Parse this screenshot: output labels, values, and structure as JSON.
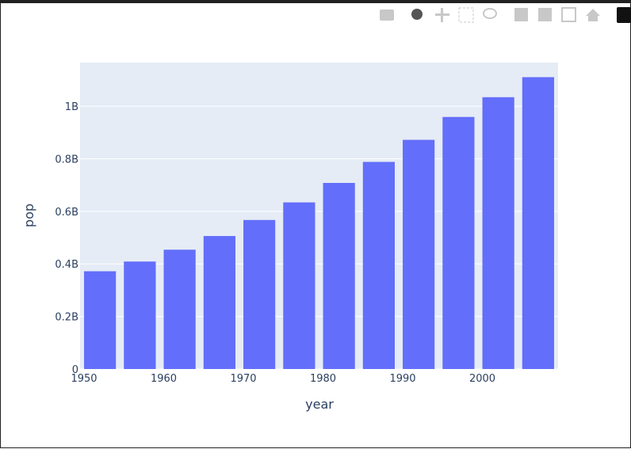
{
  "chart_data": {
    "type": "bar",
    "x": [
      1952,
      1957,
      1962,
      1967,
      1972,
      1977,
      1982,
      1987,
      1992,
      1997,
      2002,
      2007
    ],
    "values": [
      372000000,
      409000000,
      454000000,
      506000000,
      567000000,
      634000000,
      708000000,
      788000000,
      872000000,
      959000000,
      1034172547,
      1110396331
    ],
    "color": "#636efa",
    "xlabel": "year",
    "ylabel": "pop",
    "bar_width": 4,
    "xlim": [
      1949.5,
      2009.5
    ],
    "xticks": [
      1950,
      1960,
      1970,
      1980,
      1990,
      2000
    ],
    "ylim": [
      0,
      1166000000
    ],
    "yticks": [
      0,
      {
        "value": 200000000,
        "label": "0.2B"
      },
      {
        "value": 400000000,
        "label": "0.4B"
      },
      {
        "value": 600000000,
        "label": "0.6B"
      },
      {
        "value": 800000000,
        "label": "0.8B"
      },
      {
        "value": 1000000000,
        "label": "1B"
      }
    ],
    "grid": true
  }
}
